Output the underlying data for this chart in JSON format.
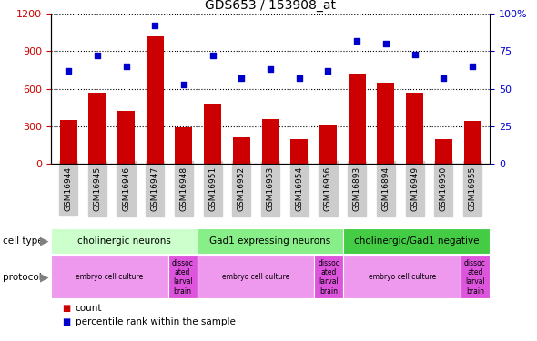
{
  "title": "GDS653 / 153908_at",
  "samples": [
    "GSM16944",
    "GSM16945",
    "GSM16946",
    "GSM16947",
    "GSM16948",
    "GSM16951",
    "GSM16952",
    "GSM16953",
    "GSM16954",
    "GSM16956",
    "GSM16893",
    "GSM16894",
    "GSM16949",
    "GSM16950",
    "GSM16955"
  ],
  "counts": [
    350,
    570,
    420,
    1020,
    290,
    480,
    210,
    360,
    195,
    315,
    720,
    650,
    570,
    195,
    340
  ],
  "percentiles": [
    62,
    72,
    65,
    92,
    53,
    72,
    57,
    63,
    57,
    62,
    82,
    80,
    73,
    57,
    65
  ],
  "bar_color": "#cc0000",
  "dot_color": "#0000cc",
  "ylim_left": [
    0,
    1200
  ],
  "ylim_right": [
    0,
    100
  ],
  "yticks_left": [
    0,
    300,
    600,
    900,
    1200
  ],
  "yticks_right": [
    0,
    25,
    50,
    75,
    100
  ],
  "cell_type_groups": [
    {
      "label": "cholinergic neurons",
      "start": 0,
      "end": 5,
      "color": "#ccffcc"
    },
    {
      "label": "Gad1 expressing neurons",
      "start": 5,
      "end": 10,
      "color": "#88ee88"
    },
    {
      "label": "cholinergic/Gad1 negative",
      "start": 10,
      "end": 15,
      "color": "#44cc44"
    }
  ],
  "protocol_groups": [
    {
      "label": "embryo cell culture",
      "start": 0,
      "end": 4,
      "color": "#ee99ee"
    },
    {
      "label": "dissoc\nated\nlarval\nbrain",
      "start": 4,
      "end": 5,
      "color": "#dd55dd"
    },
    {
      "label": "embryo cell culture",
      "start": 5,
      "end": 9,
      "color": "#ee99ee"
    },
    {
      "label": "dissoc\nated\nlarval\nbrain",
      "start": 9,
      "end": 10,
      "color": "#dd55dd"
    },
    {
      "label": "embryo cell culture",
      "start": 10,
      "end": 14,
      "color": "#ee99ee"
    },
    {
      "label": "dissoc\nated\nlarval\nbrain",
      "start": 14,
      "end": 15,
      "color": "#dd55dd"
    }
  ],
  "legend_count_color": "#cc0000",
  "legend_pct_color": "#0000cc",
  "background_color": "#ffffff",
  "plot_bg_color": "#ffffff",
  "x_tick_bg_color": "#cccccc"
}
